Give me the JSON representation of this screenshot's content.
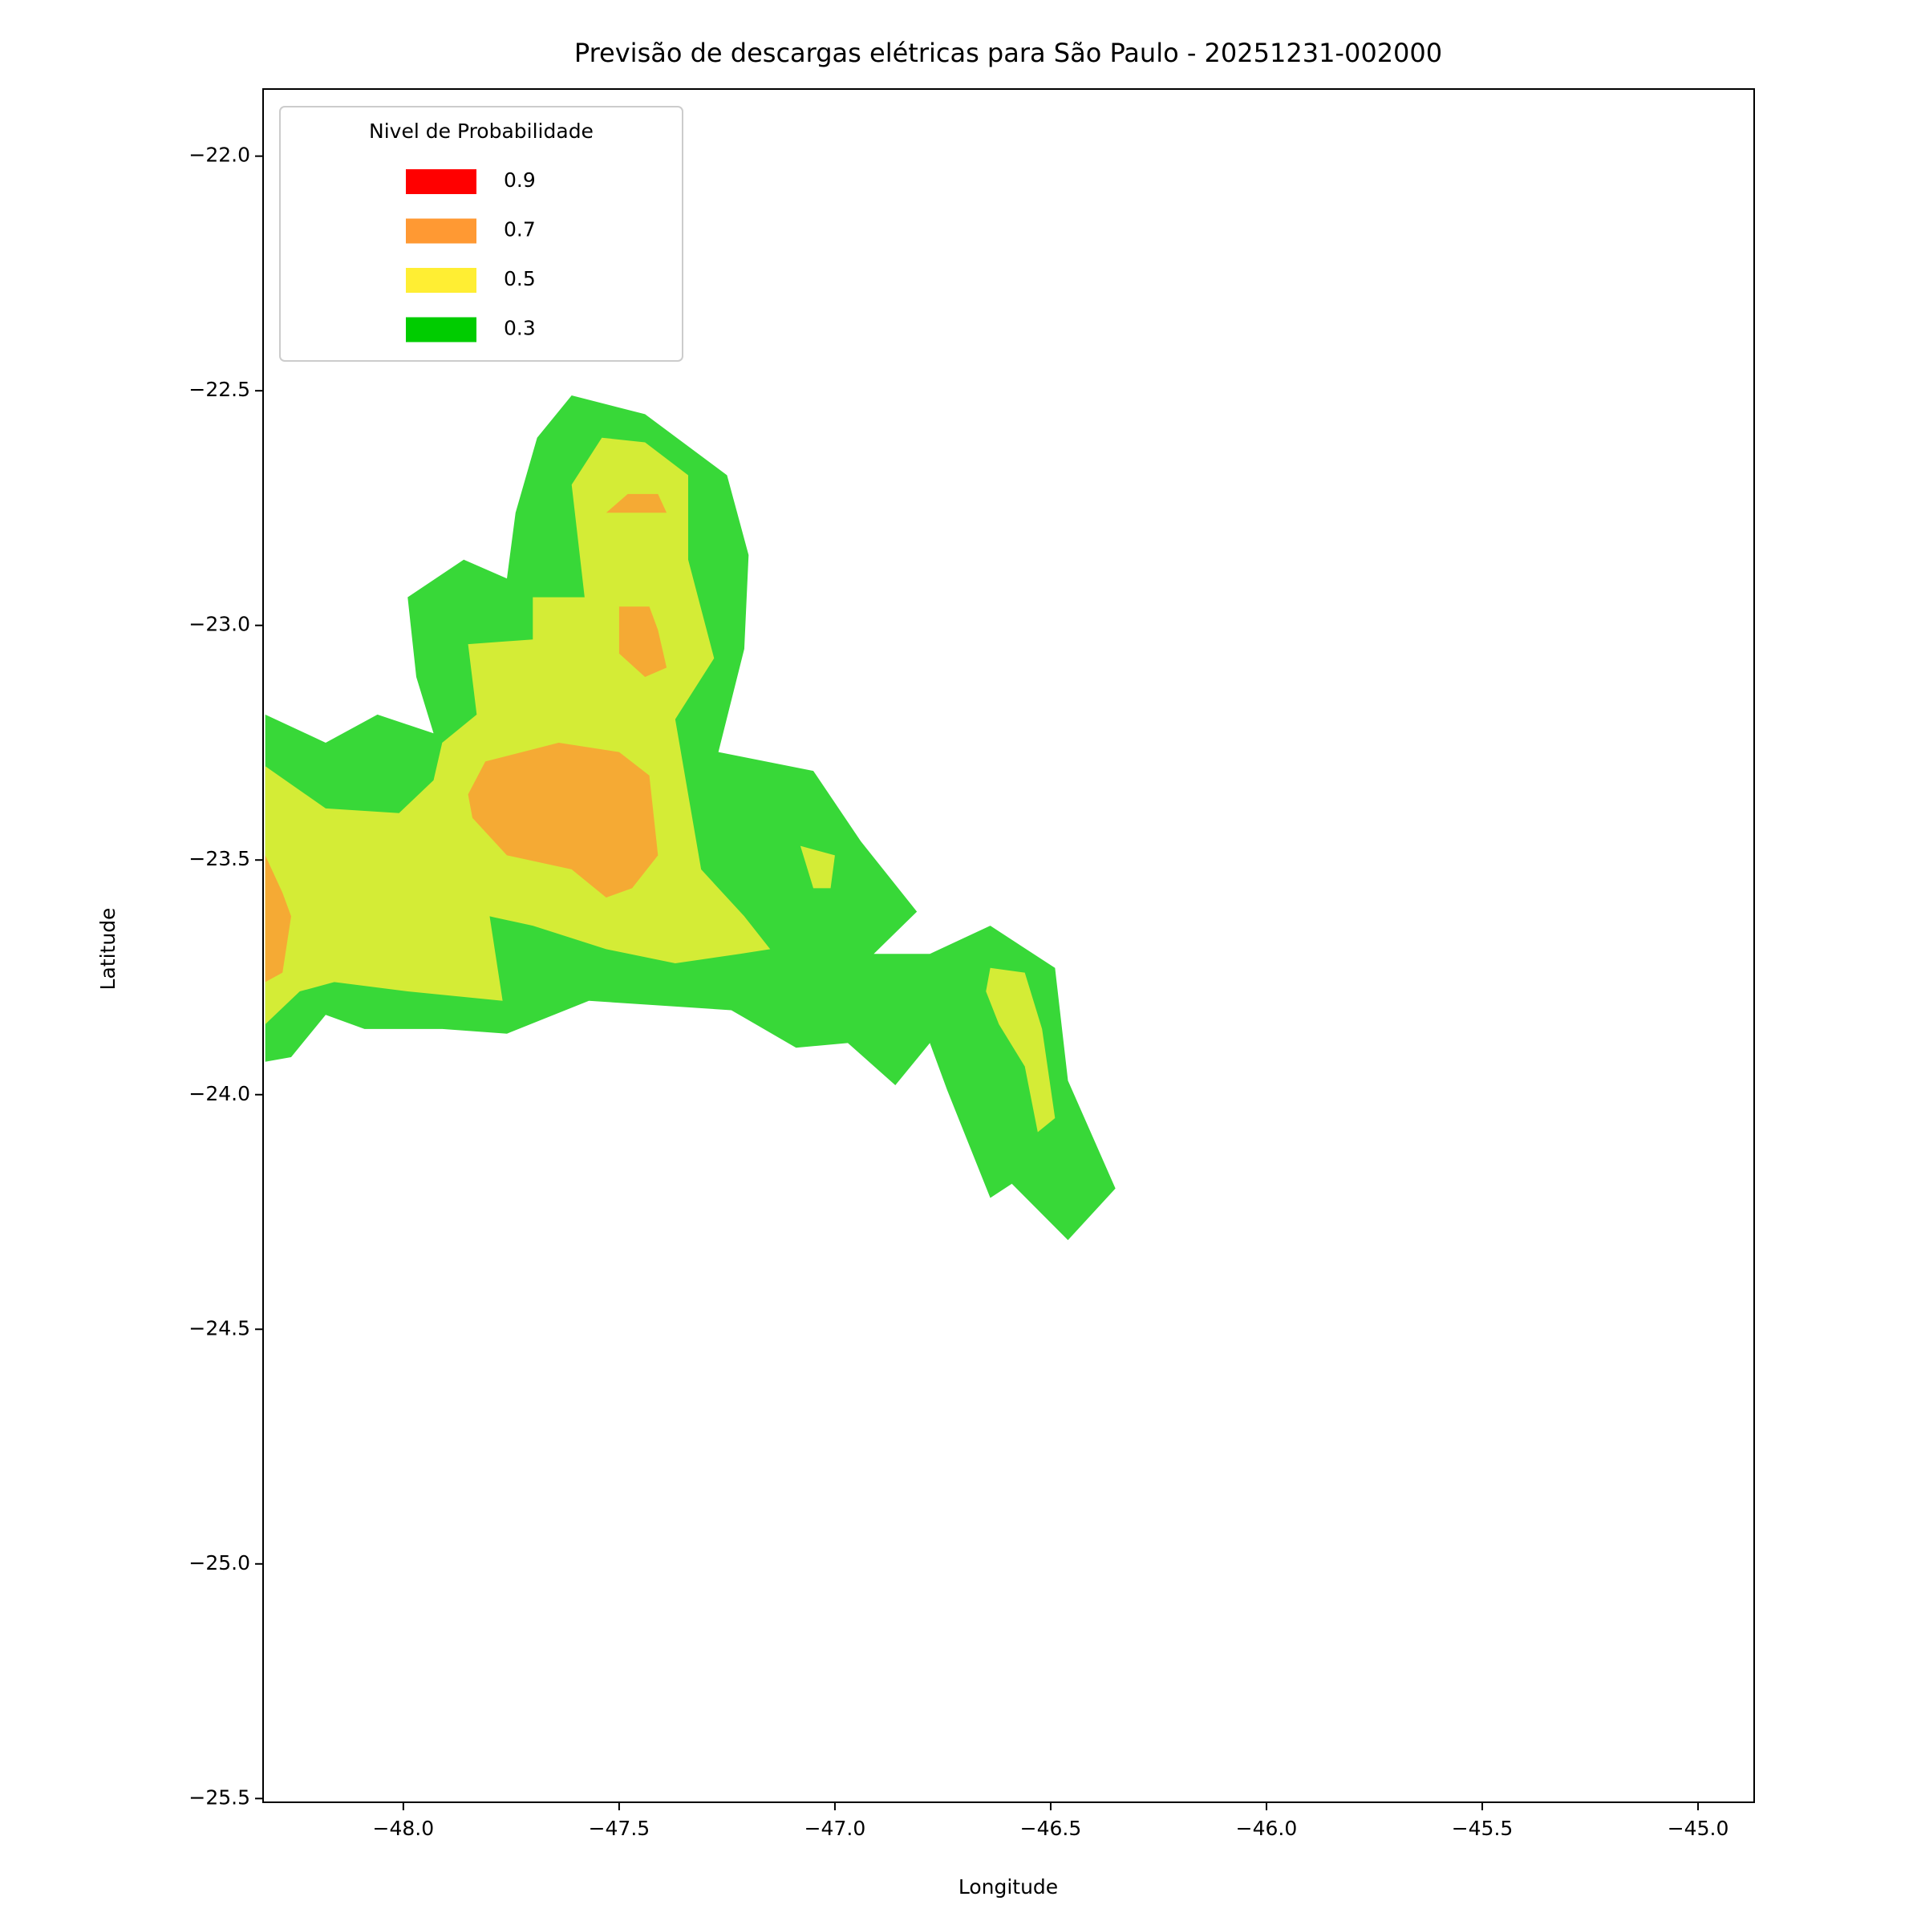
{
  "chart_data": {
    "type": "contour",
    "title": "Previsão de descargas elétricas para São Paulo - 20251231-002000",
    "x_label": "Longitude",
    "y_label": "Latitude",
    "xlim": [
      -48.325,
      -44.87
    ],
    "ylim": [
      -25.508,
      -21.857
    ],
    "xticks": [
      {
        "value": -48.0,
        "label": "−48.0"
      },
      {
        "value": -47.5,
        "label": "−47.5"
      },
      {
        "value": -47.0,
        "label": "−47.0"
      },
      {
        "value": -46.5,
        "label": "−46.5"
      },
      {
        "value": -46.0,
        "label": "−46.0"
      },
      {
        "value": -45.5,
        "label": "−45.5"
      },
      {
        "value": -45.0,
        "label": "−45.0"
      }
    ],
    "yticks": [
      {
        "value": -22.0,
        "label": "−22.0"
      },
      {
        "value": -22.5,
        "label": "−22.5"
      },
      {
        "value": -23.0,
        "label": "−23.0"
      },
      {
        "value": -23.5,
        "label": "−23.5"
      },
      {
        "value": -24.0,
        "label": "−24.0"
      },
      {
        "value": -24.5,
        "label": "−24.5"
      },
      {
        "value": -25.0,
        "label": "−25.0"
      },
      {
        "value": -25.5,
        "label": "−25.5"
      }
    ],
    "legend_title": "Nivel de Probabilidade",
    "legend_position": "upper left",
    "levels": [
      {
        "name": "0.9",
        "color": "#ff0000"
      },
      {
        "name": "0.7",
        "color": "#ff9933"
      },
      {
        "name": "0.5",
        "color": "#ffee33"
      },
      {
        "name": "0.3",
        "color": "#00cc00"
      }
    ],
    "regions": [
      {
        "color": "#38d838",
        "lon": [
          -48.32,
          -48.18,
          -48.06,
          -47.93,
          -47.97,
          -47.99,
          -47.86,
          -47.76,
          -47.74,
          -47.69,
          -47.61,
          -47.44,
          -47.25,
          -47.2,
          -47.21,
          -47.27,
          -47.05,
          -46.94,
          -46.81,
          -46.91,
          -46.78,
          -46.64,
          -46.49,
          -46.46,
          -46.35,
          -46.46,
          -46.59,
          -46.64,
          -46.74,
          -46.78,
          -46.86,
          -46.97,
          -47.09,
          -47.24,
          -47.57,
          -47.76,
          -47.91,
          -48.09,
          -48.18,
          -48.26,
          -48.32
        ],
        "lat": [
          -23.19,
          -23.25,
          -23.19,
          -23.23,
          -23.11,
          -22.94,
          -22.86,
          -22.9,
          -22.76,
          -22.6,
          -22.51,
          -22.55,
          -22.68,
          -22.85,
          -23.05,
          -23.27,
          -23.31,
          -23.46,
          -23.61,
          -23.7,
          -23.7,
          -23.64,
          -23.73,
          -23.97,
          -24.2,
          -24.31,
          -24.19,
          -24.22,
          -23.99,
          -23.89,
          -23.98,
          -23.89,
          -23.9,
          -23.82,
          -23.8,
          -23.87,
          -23.86,
          -23.86,
          -23.83,
          -23.92,
          -23.93
        ]
      },
      {
        "color": "#d4ec36",
        "lon": [
          -48.32,
          -48.18,
          -48.01,
          -47.93,
          -47.91,
          -47.83,
          -47.85,
          -47.7,
          -47.7,
          -47.58,
          -47.61,
          -47.54,
          -47.44,
          -47.34,
          -47.34,
          -47.28,
          -47.37,
          -47.34,
          -47.31,
          -47.21,
          -47.15,
          -47.22,
          -47.37,
          -47.53,
          -47.7,
          -47.8,
          -47.77,
          -47.99,
          -48.16,
          -48.24,
          -48.32
        ],
        "lat": [
          -23.3,
          -23.39,
          -23.4,
          -23.33,
          -23.25,
          -23.19,
          -23.04,
          -23.03,
          -22.94,
          -22.94,
          -22.7,
          -22.6,
          -22.61,
          -22.68,
          -22.86,
          -23.07,
          -23.2,
          -23.36,
          -23.52,
          -23.62,
          -23.69,
          -23.7,
          -23.72,
          -23.69,
          -23.64,
          -23.62,
          -23.8,
          -23.78,
          -23.76,
          -23.78,
          -23.85
        ]
      },
      {
        "color": "#d4ec36",
        "lon": [
          -46.64,
          -46.56,
          -46.52,
          -46.49,
          -46.53,
          -46.56,
          -46.62,
          -46.65
        ],
        "lat": [
          -23.73,
          -23.74,
          -23.86,
          -24.05,
          -24.08,
          -23.94,
          -23.85,
          -23.78
        ]
      },
      {
        "color": "#d4ec36",
        "lon": [
          -47.08,
          -47.0,
          -47.01,
          -47.05
        ],
        "lat": [
          -23.47,
          -23.49,
          -23.56,
          -23.56
        ]
      },
      {
        "color": "#f5aa34",
        "lon": [
          -47.81,
          -47.64,
          -47.5,
          -47.43,
          -47.41,
          -47.47,
          -47.53,
          -47.61,
          -47.76,
          -47.84,
          -47.85
        ],
        "lat": [
          -23.29,
          -23.25,
          -23.27,
          -23.32,
          -23.49,
          -23.56,
          -23.58,
          -23.52,
          -23.49,
          -23.41,
          -23.36
        ]
      },
      {
        "color": "#f5aa34",
        "lon": [
          -47.53,
          -47.48,
          -47.41,
          -47.39
        ],
        "lat": [
          -22.76,
          -22.72,
          -22.72,
          -22.76
        ]
      },
      {
        "color": "#f5aa34",
        "lon": [
          -47.5,
          -47.43,
          -47.41,
          -47.39,
          -47.44,
          -47.5
        ],
        "lat": [
          -22.96,
          -22.96,
          -23.01,
          -23.09,
          -23.11,
          -23.06
        ]
      },
      {
        "color": "#f5aa34",
        "lon": [
          -48.32,
          -48.28,
          -48.26,
          -48.28,
          -48.32
        ],
        "lat": [
          -23.49,
          -23.57,
          -23.62,
          -23.74,
          -23.76
        ]
      }
    ]
  }
}
